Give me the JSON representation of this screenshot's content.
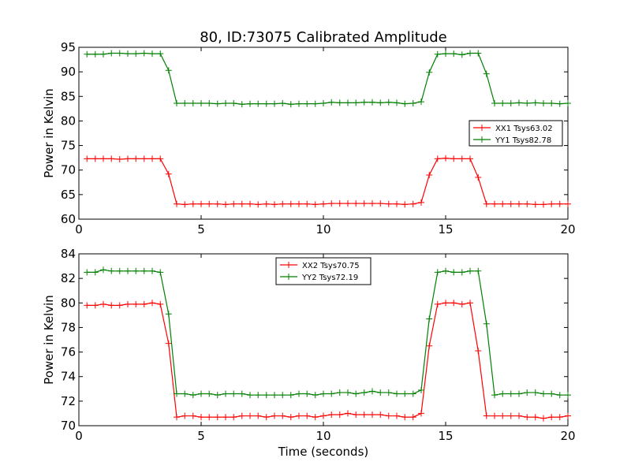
{
  "figure": {
    "title": "80, ID:73075 Calibrated Amplitude",
    "xlabel": "Time (seconds)"
  },
  "chart_data": [
    {
      "type": "line",
      "title": "80, ID:73075 Calibrated Amplitude",
      "xlabel": "",
      "ylabel": "Power in Kelvin",
      "xlim": [
        0,
        20
      ],
      "ylim": [
        60,
        95
      ],
      "xticks": [
        0,
        5,
        10,
        15,
        20
      ],
      "yticks": [
        60,
        65,
        70,
        75,
        80,
        85,
        90,
        95
      ],
      "grid": false,
      "legend": "right",
      "x": [
        0.33,
        0.67,
        1.0,
        1.33,
        1.67,
        2.0,
        2.33,
        2.67,
        3.0,
        3.33,
        3.67,
        4.0,
        4.33,
        4.67,
        5.0,
        5.33,
        5.67,
        6.0,
        6.33,
        6.67,
        7.0,
        7.33,
        7.67,
        8.0,
        8.33,
        8.67,
        9.0,
        9.33,
        9.67,
        10.0,
        10.33,
        10.67,
        11.0,
        11.33,
        11.67,
        12.0,
        12.33,
        12.67,
        13.0,
        13.33,
        13.67,
        14.0,
        14.33,
        14.67,
        15.0,
        15.33,
        15.67,
        16.0,
        16.33,
        16.67,
        17.0,
        17.33,
        17.67,
        18.0,
        18.33,
        18.67,
        19.0,
        19.33,
        19.67,
        20.0
      ],
      "series": [
        {
          "name": "XX1 Tsys63.02",
          "color": "#ff0000",
          "values": [
            72.3,
            72.3,
            72.3,
            72.3,
            72.2,
            72.3,
            72.3,
            72.3,
            72.3,
            72.3,
            69.2,
            63.1,
            63.0,
            63.1,
            63.1,
            63.1,
            63.1,
            63.0,
            63.1,
            63.1,
            63.1,
            63.0,
            63.1,
            63.0,
            63.1,
            63.1,
            63.1,
            63.1,
            63.0,
            63.1,
            63.2,
            63.2,
            63.2,
            63.2,
            63.2,
            63.2,
            63.2,
            63.1,
            63.1,
            63.0,
            63.1,
            63.4,
            69.0,
            72.3,
            72.4,
            72.3,
            72.3,
            72.3,
            68.5,
            63.1,
            63.1,
            63.1,
            63.1,
            63.1,
            63.1,
            63.0,
            63.0,
            63.1,
            63.1,
            63.1
          ]
        },
        {
          "name": "YY1 Tsys82.78",
          "color": "#008000",
          "values": [
            93.6,
            93.6,
            93.6,
            93.8,
            93.8,
            93.7,
            93.7,
            93.8,
            93.7,
            93.7,
            90.3,
            83.6,
            83.6,
            83.6,
            83.6,
            83.6,
            83.5,
            83.6,
            83.6,
            83.4,
            83.5,
            83.5,
            83.5,
            83.5,
            83.6,
            83.4,
            83.5,
            83.5,
            83.5,
            83.6,
            83.8,
            83.7,
            83.7,
            83.7,
            83.8,
            83.8,
            83.7,
            83.8,
            83.7,
            83.5,
            83.6,
            83.9,
            89.9,
            93.6,
            93.7,
            93.7,
            93.5,
            93.8,
            93.8,
            89.6,
            83.6,
            83.6,
            83.6,
            83.7,
            83.6,
            83.7,
            83.6,
            83.6,
            83.5,
            83.6
          ]
        }
      ]
    },
    {
      "type": "line",
      "title": "",
      "xlabel": "Time (seconds)",
      "ylabel": "Power in Kelvin",
      "xlim": [
        0,
        20
      ],
      "ylim": [
        70,
        84
      ],
      "xticks": [
        0,
        5,
        10,
        15,
        20
      ],
      "yticks": [
        70,
        72,
        74,
        76,
        78,
        80,
        82,
        84
      ],
      "grid": false,
      "legend": "top-center",
      "x": [
        0.33,
        0.67,
        1.0,
        1.33,
        1.67,
        2.0,
        2.33,
        2.67,
        3.0,
        3.33,
        3.67,
        4.0,
        4.33,
        4.67,
        5.0,
        5.33,
        5.67,
        6.0,
        6.33,
        6.67,
        7.0,
        7.33,
        7.67,
        8.0,
        8.33,
        8.67,
        9.0,
        9.33,
        9.67,
        10.0,
        10.33,
        10.67,
        11.0,
        11.33,
        11.67,
        12.0,
        12.33,
        12.67,
        13.0,
        13.33,
        13.67,
        14.0,
        14.33,
        14.67,
        15.0,
        15.33,
        15.67,
        16.0,
        16.33,
        16.67,
        17.0,
        17.33,
        17.67,
        18.0,
        18.33,
        18.67,
        19.0,
        19.33,
        19.67,
        20.0
      ],
      "series": [
        {
          "name": "XX2 Tsys70.75",
          "color": "#ff0000",
          "values": [
            79.8,
            79.8,
            79.9,
            79.8,
            79.8,
            79.9,
            79.9,
            79.9,
            80.0,
            79.9,
            76.7,
            70.7,
            70.8,
            70.8,
            70.7,
            70.7,
            70.7,
            70.7,
            70.7,
            70.8,
            70.8,
            70.8,
            70.7,
            70.8,
            70.8,
            70.7,
            70.8,
            70.8,
            70.7,
            70.8,
            70.9,
            70.9,
            71.0,
            70.9,
            70.9,
            70.9,
            70.9,
            70.8,
            70.8,
            70.7,
            70.7,
            71.0,
            76.5,
            79.9,
            80.0,
            80.0,
            79.9,
            80.0,
            76.1,
            70.8,
            70.8,
            70.8,
            70.8,
            70.8,
            70.7,
            70.7,
            70.6,
            70.7,
            70.7,
            70.8
          ]
        },
        {
          "name": "YY2 Tsys72.19",
          "color": "#008000",
          "values": [
            82.5,
            82.5,
            82.7,
            82.6,
            82.6,
            82.6,
            82.6,
            82.6,
            82.6,
            82.5,
            79.1,
            72.6,
            72.6,
            72.5,
            72.6,
            72.6,
            72.5,
            72.6,
            72.6,
            72.6,
            72.5,
            72.5,
            72.5,
            72.5,
            72.5,
            72.5,
            72.6,
            72.6,
            72.5,
            72.6,
            72.6,
            72.7,
            72.7,
            72.6,
            72.7,
            72.8,
            72.7,
            72.7,
            72.6,
            72.6,
            72.6,
            72.9,
            78.7,
            82.5,
            82.6,
            82.5,
            82.5,
            82.6,
            82.6,
            78.3,
            72.5,
            72.6,
            72.6,
            72.6,
            72.7,
            72.7,
            72.6,
            72.6,
            72.5,
            72.5
          ]
        }
      ]
    }
  ]
}
